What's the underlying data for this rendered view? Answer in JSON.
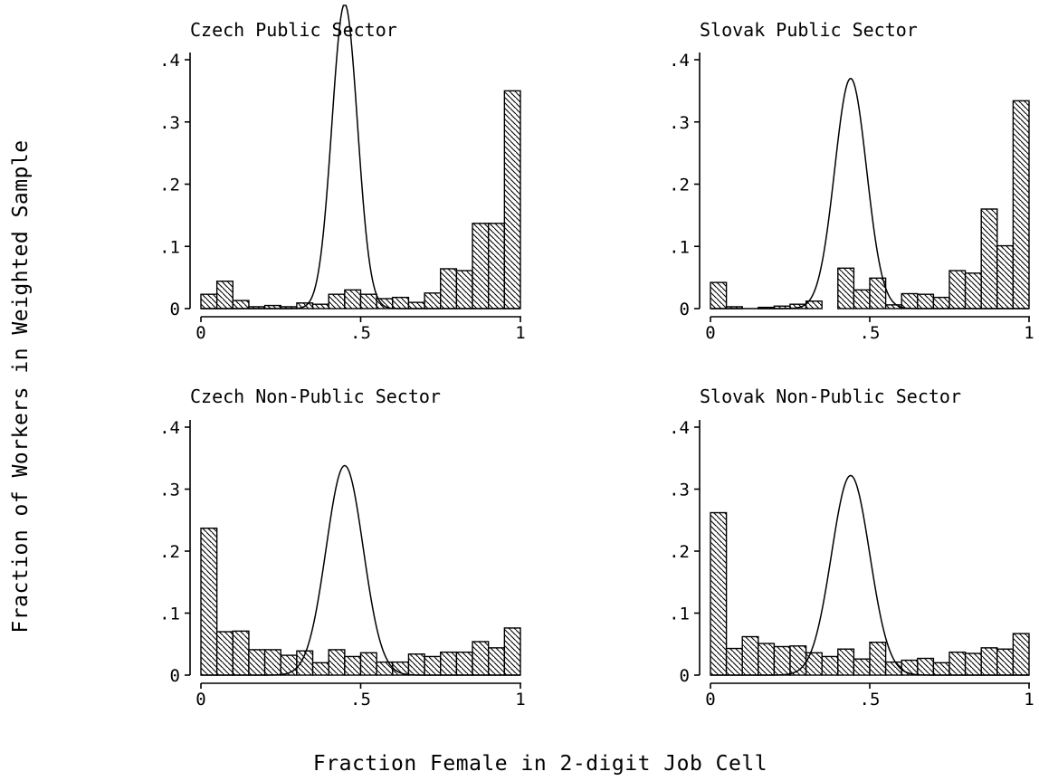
{
  "figure": {
    "ylabel": "Fraction of Workers in Weighted Sample",
    "xlabel": "Fraction Female in 2-digit Job Cell"
  },
  "chart_data": [
    {
      "type": "bar",
      "title": "Czech Public Sector",
      "bins": [
        0,
        0.05,
        0.1,
        0.15,
        0.2,
        0.25,
        0.3,
        0.35,
        0.4,
        0.45,
        0.5,
        0.55,
        0.6,
        0.65,
        0.7,
        0.75,
        0.8,
        0.85,
        0.9,
        0.95
      ],
      "bin_width": 0.05,
      "values": [
        0.023,
        0.044,
        0.013,
        0.003,
        0.005,
        0.003,
        0.009,
        0.007,
        0.023,
        0.03,
        0.023,
        0.016,
        0.018,
        0.01,
        0.025,
        0.064,
        0.061,
        0.137,
        0.137,
        0.35
      ],
      "normal_curve": {
        "mean": 0.45,
        "sd": 0.04,
        "peak": 0.49
      },
      "xlim": [
        0,
        1
      ],
      "ylim": [
        0,
        0.4
      ],
      "xticks": [
        "0",
        ".5",
        "1"
      ],
      "yticks": [
        "0",
        ".1",
        ".2",
        ".3",
        ".4"
      ]
    },
    {
      "type": "bar",
      "title": "Slovak Public Sector",
      "bins": [
        0,
        0.05,
        0.1,
        0.15,
        0.2,
        0.25,
        0.3,
        0.35,
        0.4,
        0.45,
        0.5,
        0.55,
        0.6,
        0.65,
        0.7,
        0.75,
        0.8,
        0.85,
        0.9,
        0.95
      ],
      "bin_width": 0.05,
      "values": [
        0.042,
        0.003,
        0.0,
        0.002,
        0.004,
        0.007,
        0.012,
        0.0,
        0.065,
        0.03,
        0.049,
        0.006,
        0.024,
        0.023,
        0.018,
        0.061,
        0.057,
        0.16,
        0.101,
        0.334
      ],
      "normal_curve": {
        "mean": 0.44,
        "sd": 0.05,
        "peak": 0.37
      },
      "xlim": [
        0,
        1
      ],
      "ylim": [
        0,
        0.4
      ],
      "xticks": [
        "0",
        ".5",
        "1"
      ],
      "yticks": [
        "0",
        ".1",
        ".2",
        ".3",
        ".4"
      ]
    },
    {
      "type": "bar",
      "title": "Czech Non-Public Sector",
      "bins": [
        0,
        0.05,
        0.1,
        0.15,
        0.2,
        0.25,
        0.3,
        0.35,
        0.4,
        0.45,
        0.5,
        0.55,
        0.6,
        0.65,
        0.7,
        0.75,
        0.8,
        0.85,
        0.9,
        0.95
      ],
      "bin_width": 0.05,
      "values": [
        0.237,
        0.07,
        0.071,
        0.041,
        0.041,
        0.032,
        0.039,
        0.02,
        0.041,
        0.03,
        0.036,
        0.021,
        0.021,
        0.034,
        0.03,
        0.037,
        0.037,
        0.054,
        0.044,
        0.076
      ],
      "normal_curve": {
        "mean": 0.45,
        "sd": 0.058,
        "peak": 0.338
      },
      "xlim": [
        0,
        1
      ],
      "ylim": [
        0,
        0.4
      ],
      "xticks": [
        "0",
        ".5",
        "1"
      ],
      "yticks": [
        "0",
        ".1",
        ".2",
        ".3",
        ".4"
      ]
    },
    {
      "type": "bar",
      "title": "Slovak Non-Public Sector",
      "bins": [
        0,
        0.05,
        0.1,
        0.15,
        0.2,
        0.25,
        0.3,
        0.35,
        0.4,
        0.45,
        0.5,
        0.55,
        0.6,
        0.65,
        0.7,
        0.75,
        0.8,
        0.85,
        0.9,
        0.95
      ],
      "bin_width": 0.05,
      "values": [
        0.262,
        0.043,
        0.062,
        0.051,
        0.046,
        0.047,
        0.036,
        0.03,
        0.042,
        0.026,
        0.053,
        0.021,
        0.024,
        0.027,
        0.02,
        0.037,
        0.035,
        0.044,
        0.042,
        0.067
      ],
      "normal_curve": {
        "mean": 0.44,
        "sd": 0.06,
        "peak": 0.322
      },
      "xlim": [
        0,
        1
      ],
      "ylim": [
        0,
        0.4
      ],
      "xticks": [
        "0",
        ".5",
        "1"
      ],
      "yticks": [
        "0",
        ".1",
        ".2",
        ".3",
        ".4"
      ]
    }
  ]
}
